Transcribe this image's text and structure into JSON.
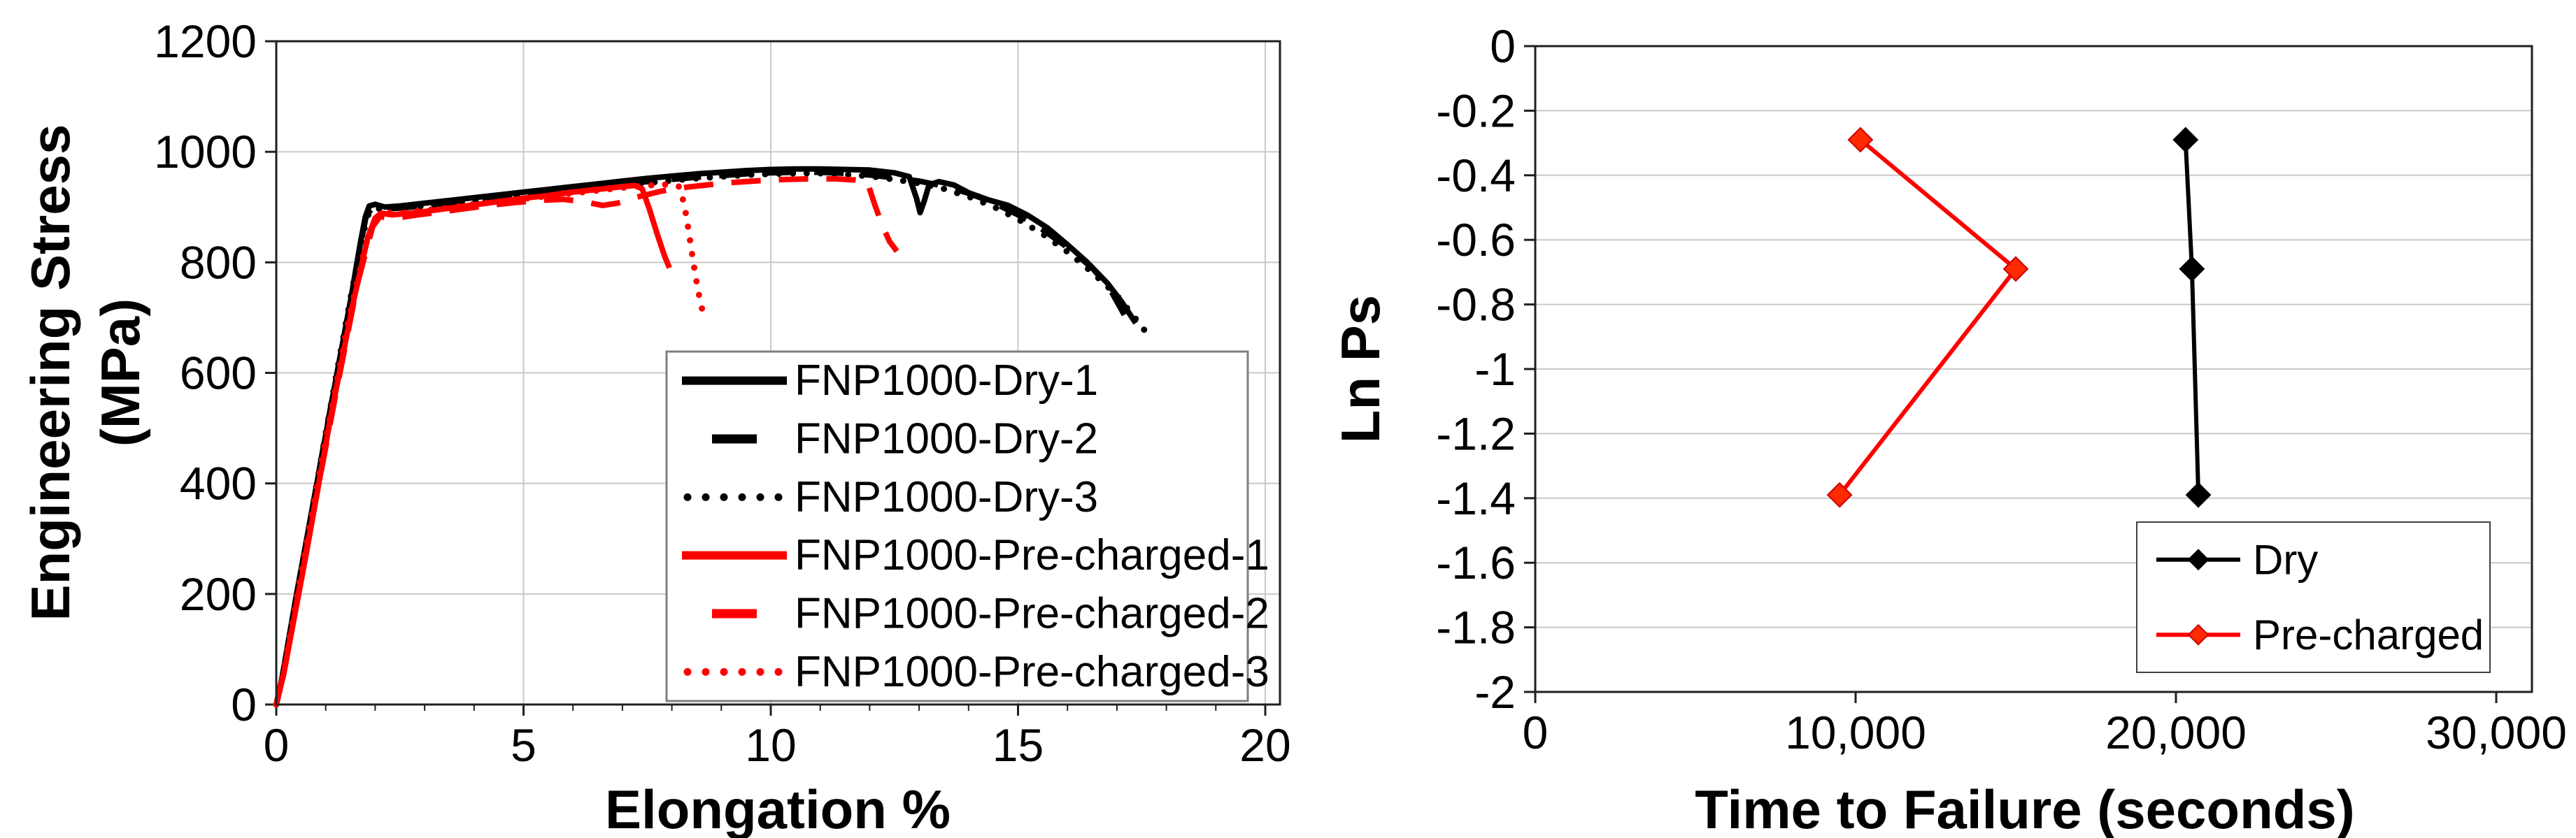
{
  "figure": {
    "description": "Two-panel figure: engineering stress-strain curves for FNP1000 steel (dry vs hydrogen pre-charged) and Ln Ps versus time to failure plot",
    "background": "#ffffff"
  },
  "colors": {
    "black_series": "#000000",
    "red_series": "#ff0000",
    "red_marker_fill": "#ff2a00",
    "grid": "#c9c9c9",
    "plot_border": "#1f1f1f",
    "legend_border_left": "#7f7f7f",
    "legend_border_right": "#404040"
  },
  "chart_data": [
    {
      "type": "line",
      "panel": "left",
      "title": "",
      "xlabel": "Elongation %",
      "ylabel": "Engineering Stress (MPa)",
      "ylabel_lines": [
        "Engineering Stress",
        "(MPa)"
      ],
      "xlim": [
        0,
        20.3
      ],
      "ylim": [
        0,
        1200
      ],
      "xticks": [
        0,
        5,
        10,
        15,
        20
      ],
      "xtick_labels": [
        "0",
        "5",
        "10",
        "15",
        "20"
      ],
      "x_minor_tick_step": 1,
      "yticks": [
        0,
        200,
        400,
        600,
        800,
        1000,
        1200
      ],
      "ytick_labels": [
        "0",
        "200",
        "400",
        "600",
        "800",
        "1000",
        "1200"
      ],
      "grid": {
        "horizontal": true,
        "vertical": true,
        "color": "#c9c9c9"
      },
      "legend_position": "inside lower right",
      "series": [
        {
          "name": "FNP1000-Dry-1",
          "color": "#000000",
          "style": "solid",
          "width": 8,
          "points": [
            [
              0,
              0
            ],
            [
              0.1,
              40
            ],
            [
              0.4,
              195
            ],
            [
              0.8,
              390
            ],
            [
              1.2,
              585
            ],
            [
              1.5,
              730
            ],
            [
              1.7,
              835
            ],
            [
              1.8,
              882
            ],
            [
              1.88,
              902
            ],
            [
              2.0,
              905
            ],
            [
              2.2,
              900
            ],
            [
              2.5,
              902
            ],
            [
              3,
              907
            ],
            [
              3.5,
              912
            ],
            [
              4,
              917
            ],
            [
              4.5,
              922
            ],
            [
              5,
              927
            ],
            [
              5.5,
              932
            ],
            [
              6,
              937
            ],
            [
              6.5,
              942
            ],
            [
              7,
              947
            ],
            [
              7.5,
              952
            ],
            [
              8,
              956
            ],
            [
              8.5,
              960
            ],
            [
              9,
              963
            ],
            [
              9.5,
              966
            ],
            [
              10,
              968
            ],
            [
              10.5,
              969
            ],
            [
              11,
              969
            ],
            [
              11.5,
              968
            ],
            [
              12,
              967
            ],
            [
              12.5,
              962
            ],
            [
              12.8,
              955
            ],
            [
              12.95,
              915
            ],
            [
              13.02,
              890
            ],
            [
              13.1,
              910
            ],
            [
              13.2,
              940
            ],
            [
              13.4,
              946
            ],
            [
              13.7,
              940
            ],
            [
              14,
              926
            ],
            [
              14.4,
              913
            ],
            [
              14.8,
              903
            ],
            [
              15.2,
              885
            ],
            [
              15.6,
              862
            ],
            [
              16,
              832
            ],
            [
              16.4,
              800
            ],
            [
              16.8,
              763
            ],
            [
              17.1,
              728
            ],
            [
              17.38,
              690
            ]
          ]
        },
        {
          "name": "FNP1000-Dry-2",
          "color": "#000000",
          "style": "dashed",
          "width": 8,
          "points": [
            [
              0,
              0
            ],
            [
              0.12,
              50
            ],
            [
              0.5,
              240
            ],
            [
              1.0,
              490
            ],
            [
              1.45,
              705
            ],
            [
              1.7,
              830
            ],
            [
              1.82,
              885
            ],
            [
              1.95,
              899
            ],
            [
              2.15,
              896
            ],
            [
              2.6,
              899
            ],
            [
              3,
              903
            ],
            [
              3.5,
              908
            ],
            [
              4,
              913
            ],
            [
              4.5,
              917
            ],
            [
              5,
              922
            ],
            [
              5.5,
              927
            ],
            [
              6,
              932
            ],
            [
              6.5,
              937
            ],
            [
              7,
              941
            ],
            [
              7.5,
              946
            ],
            [
              8,
              950
            ],
            [
              8.5,
              954
            ],
            [
              9,
              957
            ],
            [
              9.5,
              960
            ],
            [
              10,
              962
            ],
            [
              10.5,
              963
            ],
            [
              11,
              963
            ],
            [
              11.5,
              961
            ],
            [
              12,
              958
            ],
            [
              12.5,
              953
            ],
            [
              13,
              947
            ],
            [
              13.5,
              938
            ],
            [
              14,
              925
            ],
            [
              14.5,
              908
            ],
            [
              15,
              886
            ],
            [
              15.5,
              859
            ],
            [
              16,
              827
            ],
            [
              16.5,
              790
            ],
            [
              16.85,
              753
            ],
            [
              17.15,
              705
            ]
          ]
        },
        {
          "name": "FNP1000-Dry-3",
          "color": "#000000",
          "style": "dotted",
          "width": 9,
          "points": [
            [
              0,
              0
            ],
            [
              0.15,
              60
            ],
            [
              0.55,
              265
            ],
            [
              1.05,
              515
            ],
            [
              1.5,
              735
            ],
            [
              1.75,
              850
            ],
            [
              1.88,
              892
            ],
            [
              2.05,
              897
            ],
            [
              2.5,
              899
            ],
            [
              3,
              902
            ],
            [
              3.5,
              906
            ],
            [
              4,
              911
            ],
            [
              4.5,
              915
            ],
            [
              5,
              920
            ],
            [
              5.5,
              925
            ],
            [
              6,
              930
            ],
            [
              6.5,
              935
            ],
            [
              7,
              939
            ],
            [
              7.5,
              944
            ],
            [
              8,
              948
            ],
            [
              8.5,
              952
            ],
            [
              9,
              955
            ],
            [
              9.5,
              958
            ],
            [
              10,
              960
            ],
            [
              10.5,
              961
            ],
            [
              11,
              961
            ],
            [
              11.5,
              959
            ],
            [
              12,
              956
            ],
            [
              12.5,
              950
            ],
            [
              13,
              943
            ],
            [
              13.5,
              933
            ],
            [
              14,
              919
            ],
            [
              14.5,
              901
            ],
            [
              15,
              878
            ],
            [
              15.5,
              851
            ],
            [
              16,
              819
            ],
            [
              16.5,
              782
            ],
            [
              17,
              740
            ],
            [
              17.3,
              707
            ],
            [
              17.55,
              678
            ]
          ]
        },
        {
          "name": "FNP1000-Pre-charged-1",
          "color": "#ff0000",
          "style": "solid",
          "width": 8,
          "points": [
            [
              0,
              0
            ],
            [
              0.15,
              55
            ],
            [
              0.6,
              270
            ],
            [
              1.1,
              520
            ],
            [
              1.55,
              725
            ],
            [
              1.85,
              845
            ],
            [
              2.0,
              880
            ],
            [
              2.12,
              889
            ],
            [
              2.35,
              886
            ],
            [
              2.7,
              889
            ],
            [
              3,
              892
            ],
            [
              3.5,
              898
            ],
            [
              4,
              904
            ],
            [
              4.5,
              910
            ],
            [
              5,
              916
            ],
            [
              5.5,
              921
            ],
            [
              6,
              927
            ],
            [
              6.5,
              932
            ],
            [
              7,
              937
            ],
            [
              7.25,
              939
            ],
            [
              7.4,
              933
            ],
            [
              7.55,
              895
            ],
            [
              7.7,
              852
            ],
            [
              7.85,
              812
            ],
            [
              7.95,
              790
            ]
          ]
        },
        {
          "name": "FNP1000-Pre-charged-2",
          "color": "#ff0000",
          "style": "dashed",
          "width": 8,
          "points": [
            [
              0,
              0
            ],
            [
              0.18,
              70
            ],
            [
              0.65,
              300
            ],
            [
              1.2,
              560
            ],
            [
              1.65,
              765
            ],
            [
              1.95,
              865
            ],
            [
              2.1,
              883
            ],
            [
              2.35,
              879
            ],
            [
              2.8,
              885
            ],
            [
              3.3,
              891
            ],
            [
              3.8,
              897
            ],
            [
              4.3,
              903
            ],
            [
              4.8,
              908
            ],
            [
              5.3,
              912
            ],
            [
              5.8,
              914
            ],
            [
              6.2,
              910
            ],
            [
              6.6,
              903
            ],
            [
              6.9,
              907
            ],
            [
              7.3,
              918
            ],
            [
              7.8,
              929
            ],
            [
              8.3,
              936
            ],
            [
              8.8,
              941
            ],
            [
              9.3,
              945
            ],
            [
              9.8,
              948
            ],
            [
              10.3,
              950
            ],
            [
              10.8,
              951
            ],
            [
              11.3,
              951
            ],
            [
              11.7,
              949
            ],
            [
              11.95,
              946
            ],
            [
              12.1,
              905
            ],
            [
              12.25,
              868
            ],
            [
              12.4,
              838
            ],
            [
              12.55,
              820
            ]
          ]
        },
        {
          "name": "FNP1000-Pre-charged-3",
          "color": "#ff0000",
          "style": "dotted",
          "width": 9,
          "points": [
            [
              0,
              0
            ],
            [
              0.13,
              50
            ],
            [
              0.5,
              235
            ],
            [
              1.0,
              480
            ],
            [
              1.45,
              690
            ],
            [
              1.8,
              830
            ],
            [
              2.0,
              876
            ],
            [
              2.18,
              890
            ],
            [
              2.6,
              890
            ],
            [
              3,
              894
            ],
            [
              3.5,
              899
            ],
            [
              4,
              905
            ],
            [
              4.5,
              910
            ],
            [
              5,
              915
            ],
            [
              5.5,
              920
            ],
            [
              6,
              925
            ],
            [
              6.5,
              930
            ],
            [
              7,
              935
            ],
            [
              7.5,
              939
            ],
            [
              7.9,
              941
            ],
            [
              8.15,
              937
            ],
            [
              8.25,
              905
            ],
            [
              8.32,
              868
            ],
            [
              8.38,
              832
            ],
            [
              8.44,
              797
            ],
            [
              8.5,
              764
            ],
            [
              8.57,
              731
            ],
            [
              8.65,
              700
            ]
          ]
        }
      ]
    },
    {
      "type": "scatter-line",
      "panel": "right",
      "title": "",
      "xlabel": "Time to Failure (seconds)",
      "ylabel": "Ln Ps",
      "xlim": [
        0,
        31100
      ],
      "ylim": [
        -2,
        0
      ],
      "xticks": [
        0,
        10000,
        20000,
        30000
      ],
      "xtick_labels": [
        "0",
        "10,000",
        "20,000",
        "30,000"
      ],
      "yticks": [
        0,
        -0.2,
        -0.4,
        -0.6,
        -0.8,
        -1,
        -1.2,
        -1.4,
        -1.6,
        -1.8,
        -2
      ],
      "ytick_labels": [
        "0",
        "-0.2",
        "-0.4",
        "-0.6",
        "-0.8",
        "-1",
        "-1.2",
        "-1.4",
        "-1.6",
        "-1.8",
        "-2"
      ],
      "grid": {
        "horizontal": true,
        "vertical": false,
        "color": "#c9c9c9"
      },
      "marker": "diamond",
      "legend_position": "inside lower right",
      "series": [
        {
          "name": "Dry",
          "color": "#000000",
          "style": "solid",
          "width": 6,
          "marker_fill": "#000000",
          "marker_stroke": "#000000",
          "points": [
            [
              20300,
              -0.29
            ],
            [
              20500,
              -0.69
            ],
            [
              20700,
              -1.39
            ]
          ]
        },
        {
          "name": "Pre-charged",
          "color": "#ff0000",
          "style": "solid",
          "width": 6,
          "marker_fill": "#ff2a00",
          "marker_stroke": "#cc0000",
          "points": [
            [
              10150,
              -0.29
            ],
            [
              15000,
              -0.69
            ],
            [
              9500,
              -1.39
            ]
          ]
        }
      ]
    }
  ]
}
